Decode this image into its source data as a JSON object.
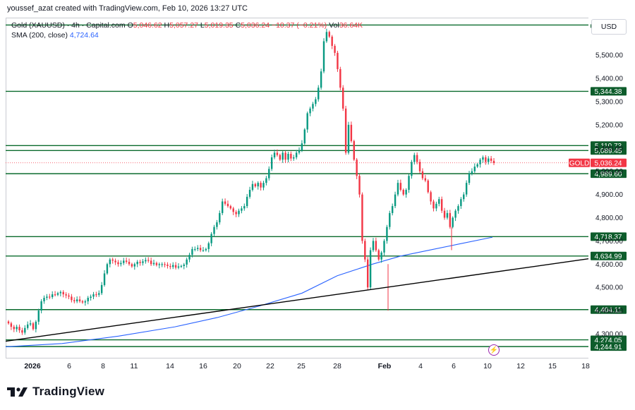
{
  "header": {
    "created_text": "youssef_azat created with TradingView.com, Feb 10, 2026 13:27 UTC"
  },
  "legend": {
    "symbol": "Gold (XAUUSD) · 4h · Capital.com",
    "open_label": "O",
    "open": "5,046.62",
    "high_label": "H",
    "high": "5,057.27",
    "low_label": "L",
    "low": "5,019.35",
    "close_label": "C",
    "close": "5,036.24",
    "change": "−10.37 (−0.21%)",
    "vol_label": "Vol",
    "vol": "36.64K",
    "sma_label": "SMA (200, close)",
    "sma_value": "4,724.64"
  },
  "currency_button": "USD",
  "brand": {
    "name": "TradingView",
    "logo": "tradingview-logo-icon"
  },
  "colors": {
    "up": "#089981",
    "down": "#f23645",
    "sma": "#2962ff",
    "level_line": "#0b6b2e",
    "level_tag": "#0d5c2b",
    "trend": "#000000"
  },
  "chart_data": {
    "type": "candlestick",
    "symbol": "Gold (XAUUSD)",
    "timeframe": "4h",
    "ylim": [
      4225,
      5640
    ],
    "y_ticks": [
      4300,
      4400,
      4500,
      4600,
      4700,
      4800,
      4900,
      5000,
      5100,
      5200,
      5300,
      5400,
      5500
    ],
    "x_ticks": [
      "2026",
      "6",
      "8",
      "11",
      "14",
      "16",
      "20",
      "22",
      "25",
      "28",
      "Feb",
      "4",
      "6",
      "10",
      "12",
      "15",
      "18"
    ],
    "horizontal_levels": [
      "5,110.73",
      "5,089.45",
      "4,989.60",
      "4,718.37",
      "4,634.99",
      "4,404.11",
      "4,274.05",
      "4,244.91",
      "5,344.38"
    ],
    "top_level": 5630,
    "current_price_label": "GOLD",
    "current_price": "5,036.24",
    "trendline": [
      {
        "date": "Dec 31",
        "price": 4270
      },
      {
        "date": "Feb 12",
        "price": 4625
      }
    ],
    "sma_200": [
      [
        0,
        4244
      ],
      [
        80,
        4258
      ],
      [
        160,
        4290
      ],
      [
        240,
        4330
      ],
      [
        300,
        4370
      ],
      [
        360,
        4420
      ],
      [
        420,
        4475
      ],
      [
        470,
        4550
      ],
      [
        520,
        4600
      ],
      [
        560,
        4635
      ],
      [
        600,
        4660
      ],
      [
        640,
        4685
      ],
      [
        690,
        4716
      ]
    ],
    "candles_close": [
      4345,
      4330,
      4320,
      4330,
      4315,
      4305,
      4325,
      4340,
      4345,
      4320,
      4352,
      4400,
      4440,
      4455,
      4460,
      4458,
      4470,
      4468,
      4475,
      4480,
      4470,
      4465,
      4460,
      4445,
      4440,
      4448,
      4440,
      4435,
      4440,
      4455,
      4460,
      4470,
      4468,
      4475,
      4510,
      4560,
      4600,
      4620,
      4615,
      4608,
      4600,
      4605,
      4615,
      4610,
      4600,
      4590,
      4600,
      4610,
      4605,
      4612,
      4618,
      4615,
      4600,
      4605,
      4596,
      4600,
      4600,
      4598,
      4592,
      4588,
      4596,
      4585,
      4590,
      4592,
      4598,
      4620,
      4640,
      4665,
      4665,
      4670,
      4660,
      4660,
      4665,
      4690,
      4730,
      4760,
      4780,
      4820,
      4870,
      4860,
      4850,
      4840,
      4825,
      4815,
      4830,
      4840,
      4850,
      4890,
      4920,
      4945,
      4935,
      4950,
      4930,
      4950,
      4970,
      5010,
      5060,
      5080,
      5070,
      5050,
      5080,
      5050,
      5075,
      5055,
      5060,
      5080,
      5090,
      5120,
      5180,
      5250,
      5270,
      5290,
      5310,
      5360,
      5430,
      5560,
      5600,
      5580,
      5540,
      5510,
      5440,
      5360,
      5270,
      5080,
      5200,
      5130,
      5050,
      4980,
      4900,
      4700,
      4620,
      4500,
      4660,
      4700,
      4660,
      4620,
      4650,
      4700,
      4760,
      4820,
      4850,
      4900,
      4950,
      4920,
      4900,
      4920,
      4980,
      5040,
      5070,
      5040,
      5000,
      4970,
      4960,
      4910,
      4870,
      4840,
      4860,
      4880,
      4830,
      4800,
      4820,
      4760,
      4800,
      4830,
      4850,
      4880,
      4900,
      4950,
      4990,
      5000,
      5020,
      5030,
      5050,
      5060,
      5040,
      5055,
      5045,
      5036
    ]
  }
}
